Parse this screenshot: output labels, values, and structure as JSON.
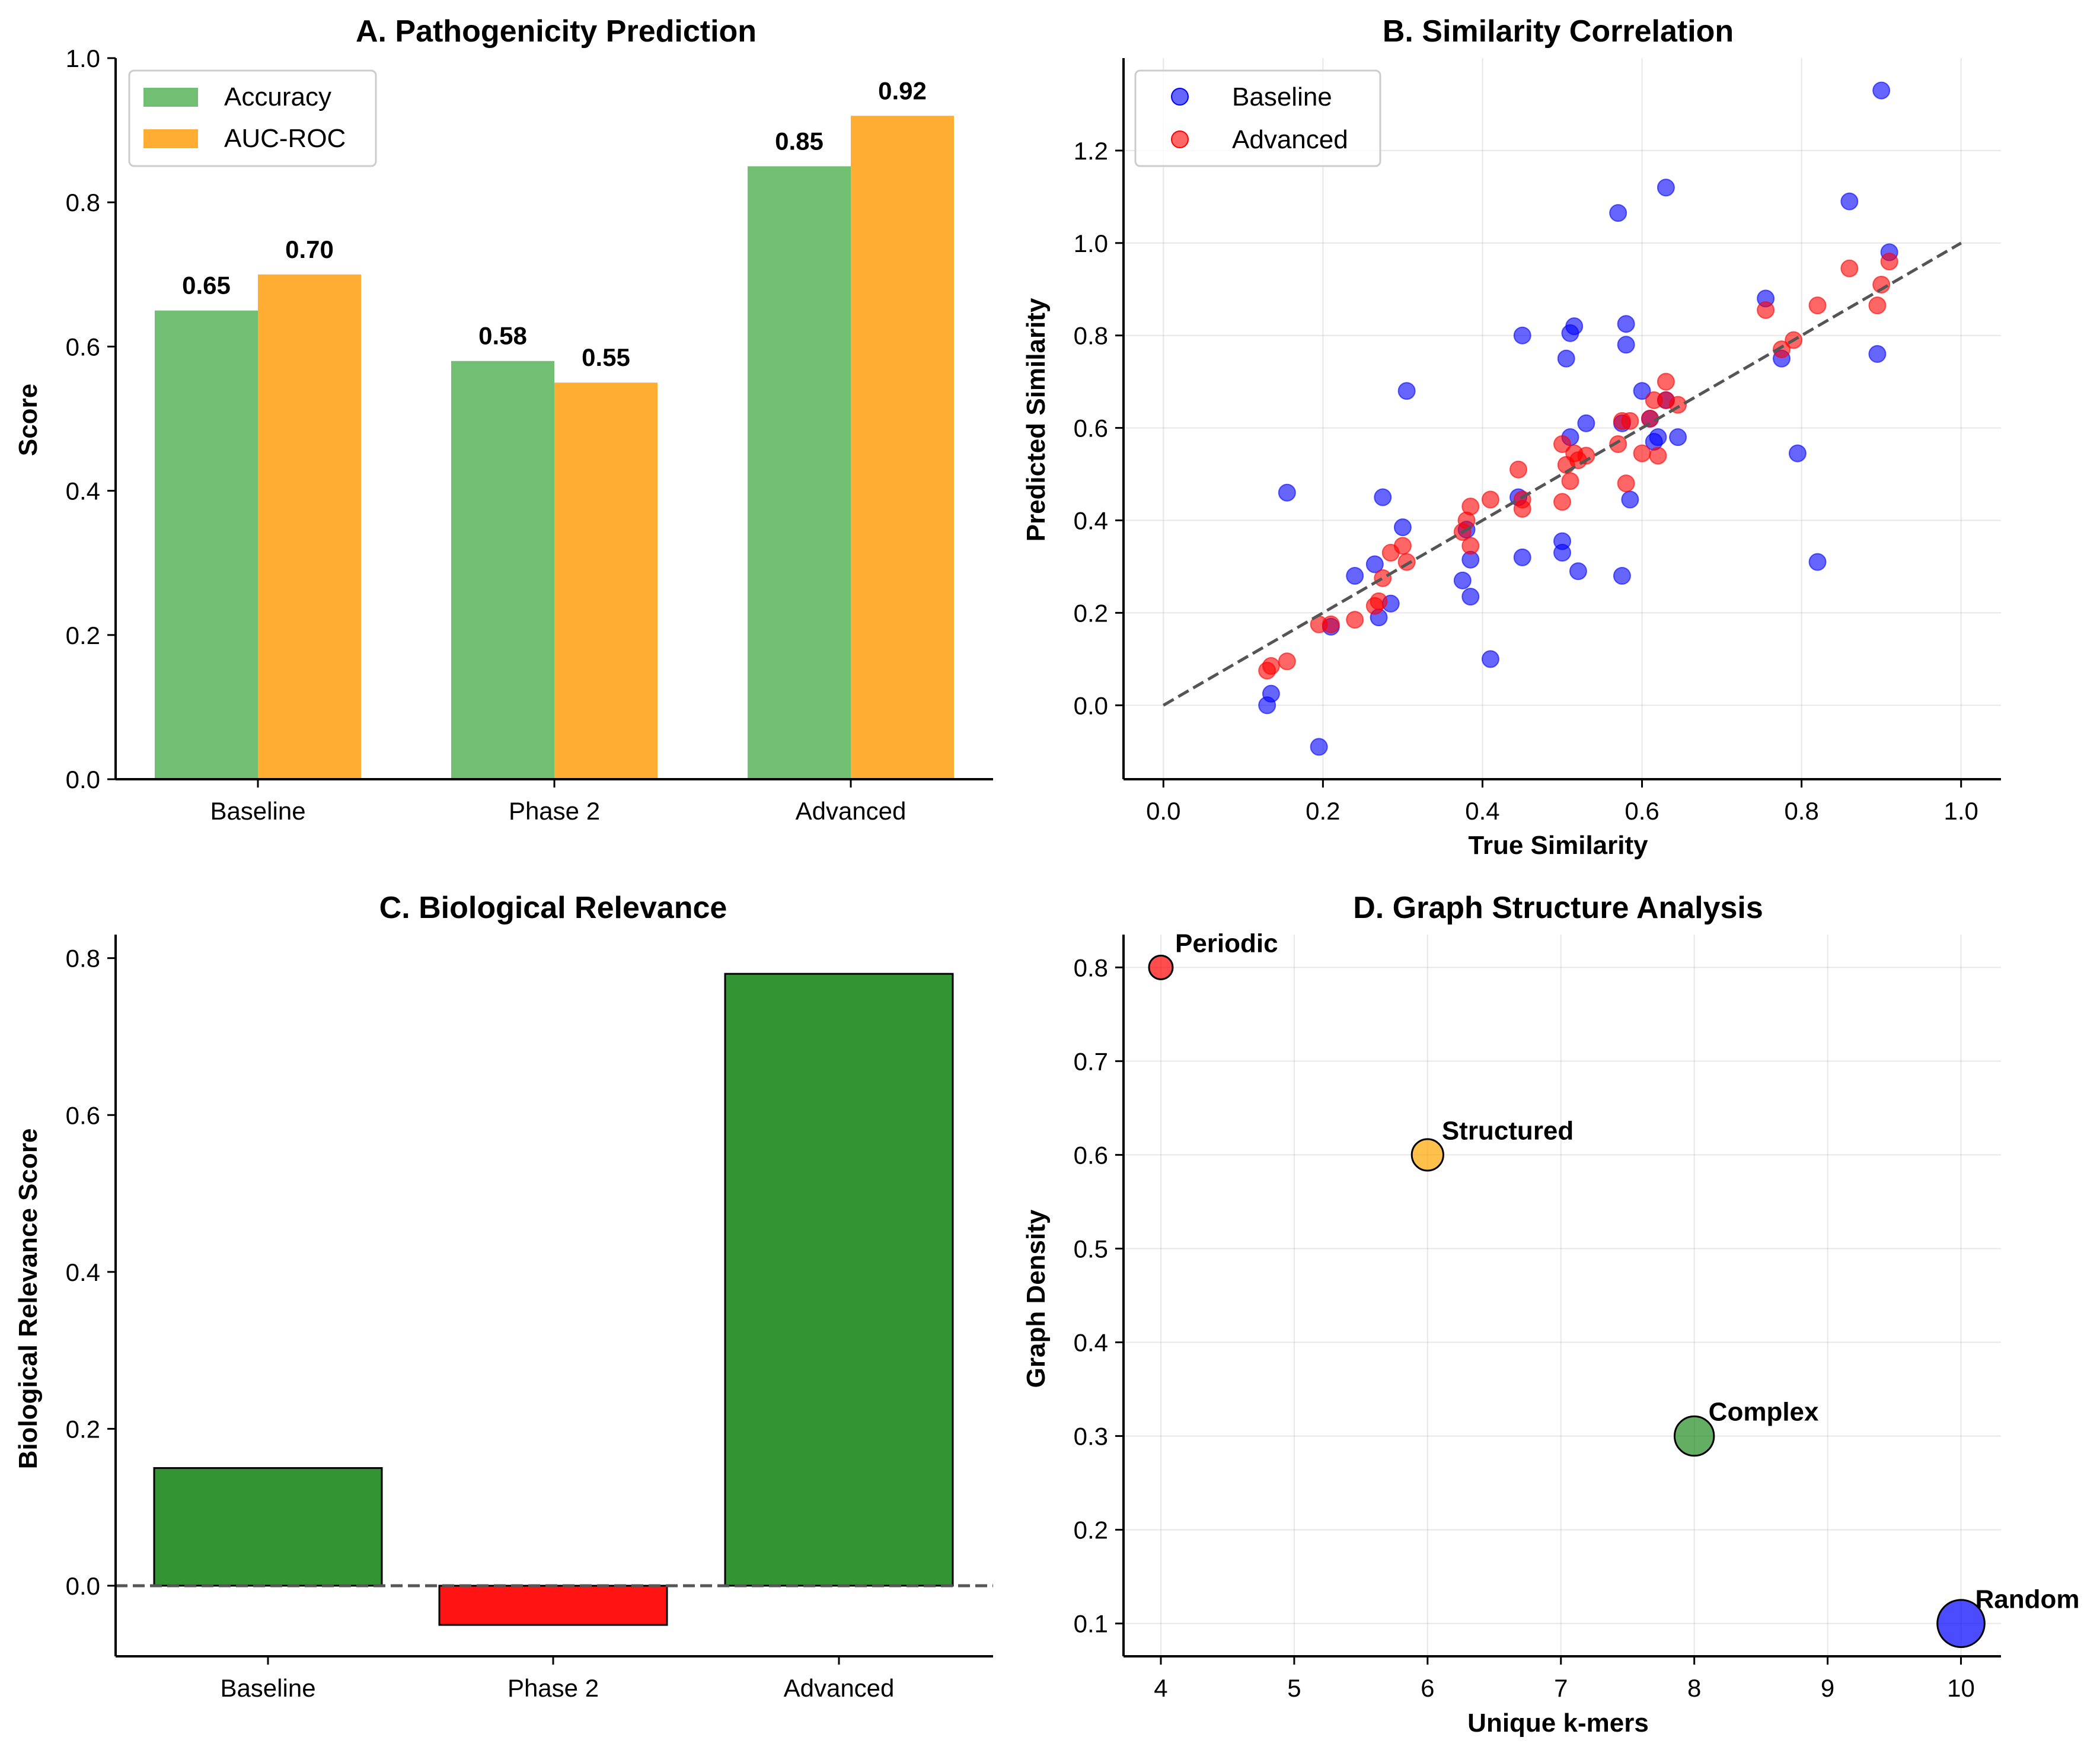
{
  "figure": {
    "background": "#ffffff"
  },
  "chart_data": [
    {
      "panel": "A",
      "type": "bar",
      "title": "A. Pathogenicity Prediction",
      "xlabel": "",
      "ylabel": "Score",
      "categories": [
        "Baseline",
        "Phase 2",
        "Advanced"
      ],
      "series": [
        {
          "name": "Accuracy",
          "values": [
            0.65,
            0.58,
            0.85
          ],
          "color": "#4caf50",
          "labels": [
            "0.65",
            "0.58",
            "0.85"
          ]
        },
        {
          "name": "AUC-ROC",
          "values": [
            0.7,
            0.55,
            0.92
          ],
          "color": "#ff9800",
          "labels": [
            "0.70",
            "0.55",
            "0.92"
          ]
        }
      ],
      "ylim": [
        0,
        1.0
      ],
      "yticks": [
        0.0,
        0.2,
        0.4,
        0.6,
        0.8,
        1.0
      ],
      "ytick_labels": [
        "0.0",
        "0.2",
        "0.4",
        "0.6",
        "0.8",
        "1.0"
      ],
      "legend": "top-left",
      "grid": false
    },
    {
      "panel": "B",
      "type": "scatter",
      "title": "B. Similarity Correlation",
      "xlabel": "True Similarity",
      "ylabel": "Predicted Similarity",
      "xlim": [
        -0.05,
        1.05
      ],
      "ylim": [
        -0.16,
        1.4
      ],
      "xticks": [
        0.0,
        0.2,
        0.4,
        0.6,
        0.8,
        1.0
      ],
      "xtick_labels": [
        "0.0",
        "0.2",
        "0.4",
        "0.6",
        "0.8",
        "1.0"
      ],
      "yticks": [
        0.0,
        0.2,
        0.4,
        0.6,
        0.8,
        1.0,
        1.2
      ],
      "ytick_labels": [
        "0.0",
        "0.2",
        "0.4",
        "0.6",
        "0.8",
        "1.0",
        "1.2"
      ],
      "reference_line": {
        "x": [
          0,
          1
        ],
        "y": [
          0,
          1
        ],
        "style": "dashed",
        "color": "#555555"
      },
      "series": [
        {
          "name": "Baseline",
          "color": "#0000ff",
          "points": [
            [
              0.13,
              0.0
            ],
            [
              0.135,
              0.025
            ],
            [
              0.155,
              0.46
            ],
            [
              0.195,
              -0.09
            ],
            [
              0.21,
              0.17
            ],
            [
              0.24,
              0.28
            ],
            [
              0.265,
              0.305
            ],
            [
              0.27,
              0.19
            ],
            [
              0.275,
              0.45
            ],
            [
              0.285,
              0.22
            ],
            [
              0.3,
              0.385
            ],
            [
              0.305,
              0.68
            ],
            [
              0.375,
              0.27
            ],
            [
              0.38,
              0.38
            ],
            [
              0.385,
              0.315
            ],
            [
              0.385,
              0.235
            ],
            [
              0.41,
              0.1
            ],
            [
              0.445,
              0.45
            ],
            [
              0.45,
              0.8
            ],
            [
              0.45,
              0.32
            ],
            [
              0.5,
              0.355
            ],
            [
              0.5,
              0.33
            ],
            [
              0.505,
              0.75
            ],
            [
              0.51,
              0.58
            ],
            [
              0.51,
              0.805
            ],
            [
              0.515,
              0.82
            ],
            [
              0.52,
              0.29
            ],
            [
              0.53,
              0.61
            ],
            [
              0.57,
              1.065
            ],
            [
              0.575,
              0.28
            ],
            [
              0.575,
              0.61
            ],
            [
              0.58,
              0.78
            ],
            [
              0.58,
              0.825
            ],
            [
              0.585,
              0.445
            ],
            [
              0.6,
              0.68
            ],
            [
              0.61,
              0.62
            ],
            [
              0.615,
              0.57
            ],
            [
              0.62,
              0.58
            ],
            [
              0.63,
              0.66
            ],
            [
              0.63,
              1.12
            ],
            [
              0.645,
              0.58
            ],
            [
              0.755,
              0.88
            ],
            [
              0.775,
              0.75
            ],
            [
              0.795,
              0.545
            ],
            [
              0.82,
              0.31
            ],
            [
              0.86,
              1.09
            ],
            [
              0.895,
              0.76
            ],
            [
              0.9,
              1.33
            ],
            [
              0.91,
              0.98
            ]
          ]
        },
        {
          "name": "Advanced",
          "color": "#ff0000",
          "points": [
            [
              0.13,
              0.075
            ],
            [
              0.135,
              0.085
            ],
            [
              0.155,
              0.095
            ],
            [
              0.195,
              0.175
            ],
            [
              0.21,
              0.175
            ],
            [
              0.24,
              0.185
            ],
            [
              0.265,
              0.215
            ],
            [
              0.27,
              0.225
            ],
            [
              0.275,
              0.275
            ],
            [
              0.285,
              0.33
            ],
            [
              0.3,
              0.345
            ],
            [
              0.305,
              0.31
            ],
            [
              0.375,
              0.375
            ],
            [
              0.38,
              0.4
            ],
            [
              0.385,
              0.345
            ],
            [
              0.385,
              0.43
            ],
            [
              0.41,
              0.445
            ],
            [
              0.445,
              0.51
            ],
            [
              0.45,
              0.425
            ],
            [
              0.45,
              0.445
            ],
            [
              0.5,
              0.44
            ],
            [
              0.5,
              0.565
            ],
            [
              0.505,
              0.52
            ],
            [
              0.51,
              0.485
            ],
            [
              0.515,
              0.545
            ],
            [
              0.52,
              0.53
            ],
            [
              0.53,
              0.54
            ],
            [
              0.57,
              0.565
            ],
            [
              0.575,
              0.615
            ],
            [
              0.58,
              0.48
            ],
            [
              0.585,
              0.615
            ],
            [
              0.6,
              0.545
            ],
            [
              0.61,
              0.62
            ],
            [
              0.615,
              0.66
            ],
            [
              0.62,
              0.54
            ],
            [
              0.63,
              0.7
            ],
            [
              0.63,
              0.66
            ],
            [
              0.645,
              0.65
            ],
            [
              0.755,
              0.855
            ],
            [
              0.775,
              0.77
            ],
            [
              0.79,
              0.79
            ],
            [
              0.82,
              0.865
            ],
            [
              0.86,
              0.945
            ],
            [
              0.895,
              0.865
            ],
            [
              0.9,
              0.91
            ],
            [
              0.91,
              0.96
            ]
          ]
        }
      ],
      "legend": "top-left",
      "grid": true
    },
    {
      "panel": "C",
      "type": "bar",
      "title": "C. Biological Relevance",
      "xlabel": "",
      "ylabel": "Biological Relevance Score",
      "categories": [
        "Baseline",
        "Phase 2",
        "Advanced"
      ],
      "values": [
        0.15,
        -0.05,
        0.78
      ],
      "colors": [
        "#228b22",
        "#ff0000",
        "#228b22"
      ],
      "ylim": [
        -0.09,
        0.83
      ],
      "yticks": [
        0.0,
        0.2,
        0.4,
        0.6,
        0.8
      ],
      "ytick_labels": [
        "0.0",
        "0.2",
        "0.4",
        "0.6",
        "0.8"
      ],
      "reference_line": {
        "y": 0,
        "style": "dashed",
        "color": "#555555"
      },
      "grid": false
    },
    {
      "panel": "D",
      "type": "scatter",
      "title": "D. Graph Structure Analysis",
      "xlabel": "Unique k-mers",
      "ylabel": "Graph Density",
      "xlim": [
        3.72,
        10.3
      ],
      "ylim": [
        0.065,
        0.835
      ],
      "xticks": [
        4,
        5,
        6,
        7,
        8,
        9,
        10
      ],
      "xtick_labels": [
        "4",
        "5",
        "6",
        "7",
        "8",
        "9",
        "10"
      ],
      "yticks": [
        0.1,
        0.2,
        0.3,
        0.4,
        0.5,
        0.6,
        0.7,
        0.8
      ],
      "ytick_labels": [
        "0.1",
        "0.2",
        "0.3",
        "0.4",
        "0.5",
        "0.6",
        "0.7",
        "0.8"
      ],
      "points": [
        {
          "label": "Periodic",
          "x": 4,
          "y": 0.8,
          "size": 4,
          "color": "#ff0000"
        },
        {
          "label": "Structured",
          "x": 6,
          "y": 0.6,
          "size": 6,
          "color": "#ffa500"
        },
        {
          "label": "Complex",
          "x": 8,
          "y": 0.3,
          "size": 8,
          "color": "#228b22"
        },
        {
          "label": "Random",
          "x": 10,
          "y": 0.1,
          "size": 10,
          "color": "#0000ff"
        }
      ],
      "grid": true
    }
  ]
}
